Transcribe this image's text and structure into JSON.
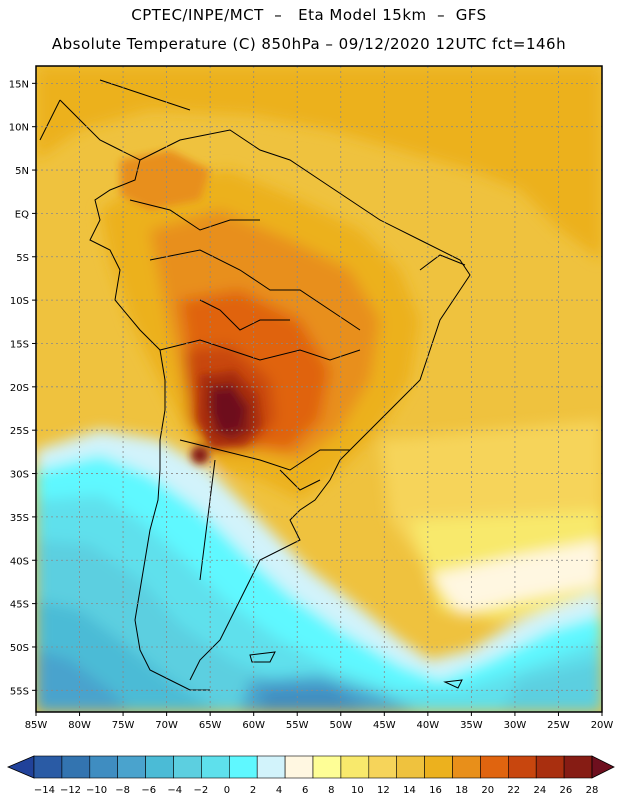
{
  "title": {
    "line1": "CPTEC/INPE/MCT  –   Eta Model 15km  –  GFS",
    "line2": "Absolute Temperature (C) 850hPa – 09/12/2020 12UTC fct=146h"
  },
  "map": {
    "lat_labels": [
      "15N",
      "10N",
      "5N",
      "EQ",
      "5S",
      "10S",
      "15S",
      "20S",
      "25S",
      "30S",
      "35S",
      "40S",
      "45S",
      "50S",
      "55S"
    ],
    "lon_labels": [
      "85W",
      "80W",
      "75W",
      "70W",
      "65W",
      "60W",
      "55W",
      "50W",
      "45W",
      "40W",
      "35W",
      "30W",
      "25W",
      "20W"
    ],
    "lon_range": [
      -85,
      -20
    ],
    "lat_range": [
      -57.5,
      17
    ]
  },
  "colorbar": {
    "labels": [
      "−14",
      "−12",
      "−10",
      "−8",
      "−6",
      "−4",
      "−2",
      "0",
      "2",
      "4",
      "6",
      "8",
      "10",
      "12",
      "14",
      "16",
      "18",
      "20",
      "22",
      "24",
      "26",
      "28"
    ],
    "colors": [
      "#21429a",
      "#2a5ba5",
      "#3374b0",
      "#3f8dc1",
      "#4aa3cd",
      "#4bbbd6",
      "#5ccfe0",
      "#5ee0ec",
      "#5ff8ff",
      "#d2f3fb",
      "#fff7e1",
      "#fefe96",
      "#f8e96c",
      "#f6d45a",
      "#efc23e",
      "#ecb11e",
      "#e88f1a",
      "#e0640f",
      "#c8460e",
      "#a92f0f",
      "#861c14",
      "#6e0f1e"
    ]
  }
}
